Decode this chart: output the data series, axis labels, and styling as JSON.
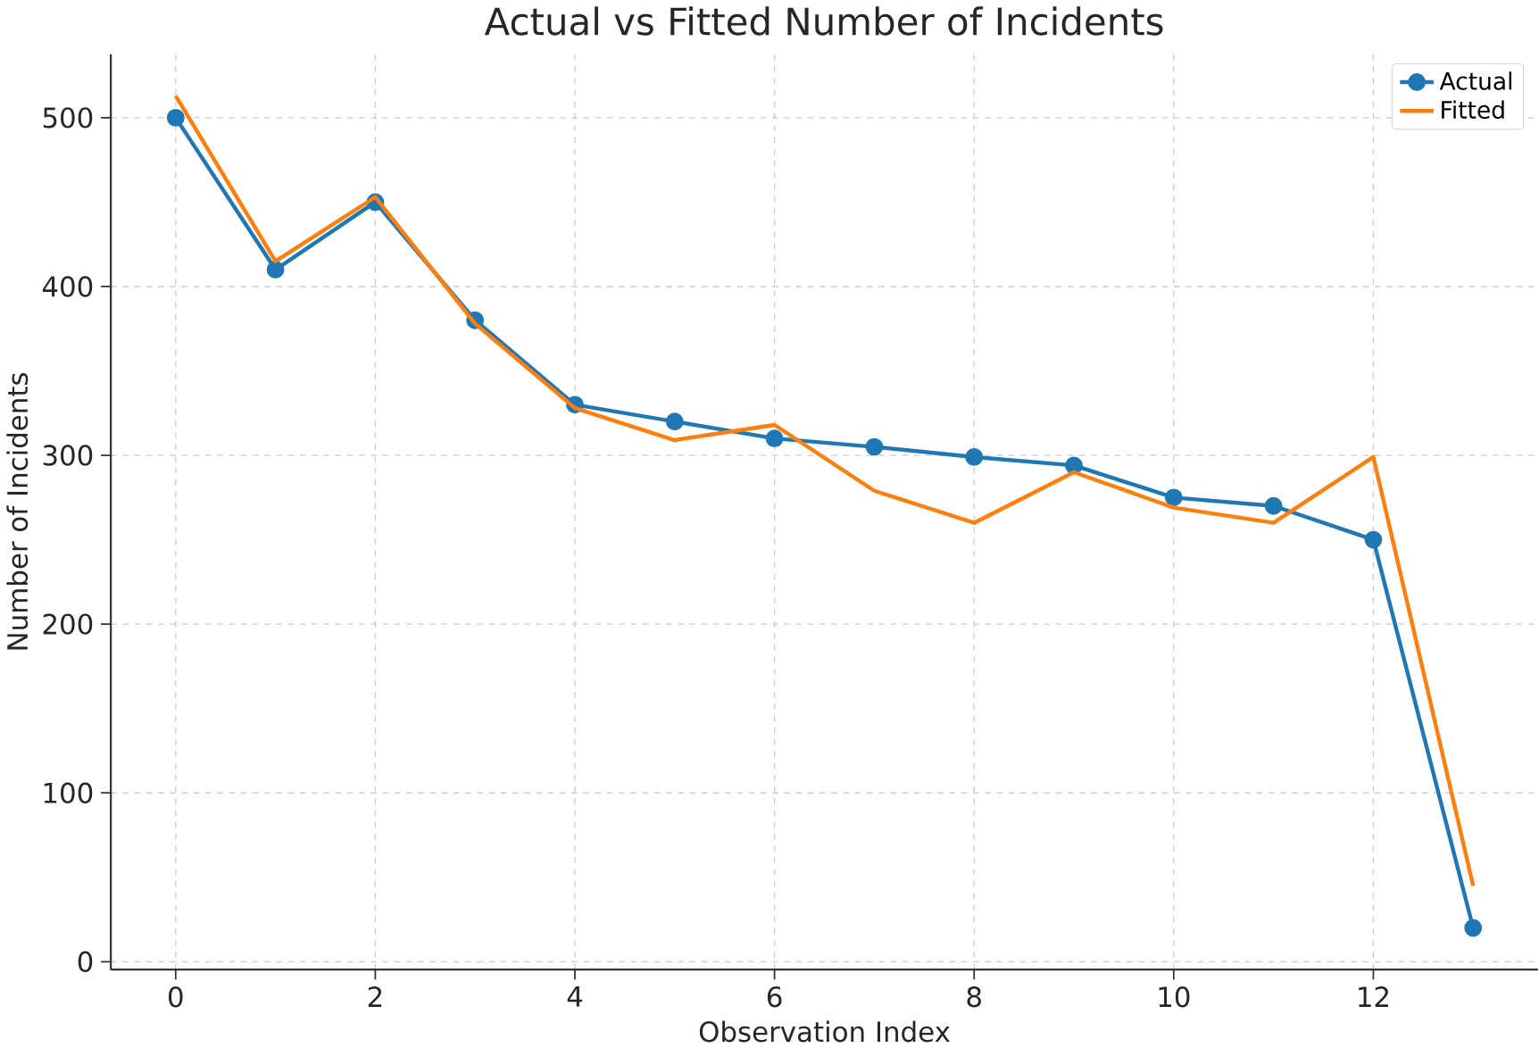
{
  "chart_data": {
    "type": "line",
    "title": "Actual vs Fitted Number of Incidents",
    "xlabel": "Observation Index",
    "ylabel": "Number of Incidents",
    "x": [
      0,
      1,
      2,
      3,
      4,
      5,
      6,
      7,
      8,
      9,
      10,
      11,
      12,
      13
    ],
    "series": [
      {
        "name": "Actual",
        "color": "#1f77b4",
        "marker": "circle",
        "values": [
          500,
          410,
          450,
          380,
          330,
          320,
          310,
          305,
          299,
          294,
          275,
          270,
          250,
          20
        ]
      },
      {
        "name": "Fitted",
        "color": "#ff7f0e",
        "marker": "none",
        "values": [
          513,
          415,
          453,
          378,
          328,
          309,
          318,
          279,
          260,
          290,
          269,
          260,
          299,
          45
        ]
      }
    ],
    "xlim": [
      -0.65,
      13.65
    ],
    "ylim": [
      -4.7,
      537.6
    ],
    "xticks": [
      0,
      2,
      4,
      6,
      8,
      10,
      12
    ],
    "yticks": [
      0,
      100,
      200,
      300,
      400,
      500
    ],
    "grid": true,
    "legend": "top right",
    "line_style": "solid"
  }
}
